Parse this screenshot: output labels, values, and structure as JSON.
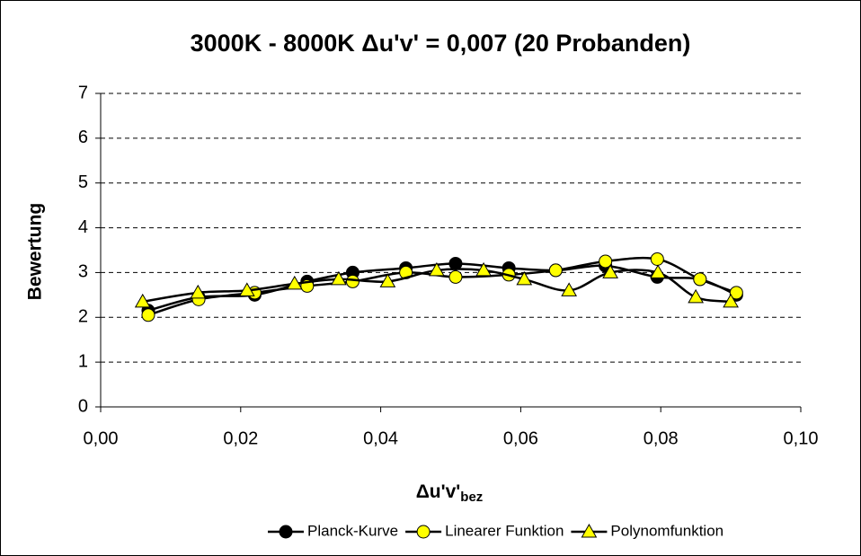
{
  "chart_data": {
    "type": "line",
    "smooth": true,
    "title": "3000K - 8000K Δu'v' = 0,007 (20 Probanden)",
    "xlabel": "Δu'v'",
    "xlabel_sub": "bez",
    "ylabel": "Bewertung",
    "xlim": [
      0,
      0.1
    ],
    "ylim": [
      0,
      7
    ],
    "xticks": [
      {
        "value": 0,
        "label": "0,00"
      },
      {
        "value": 0.02,
        "label": "0,02"
      },
      {
        "value": 0.04,
        "label": "0,04"
      },
      {
        "value": 0.06,
        "label": "0,06"
      },
      {
        "value": 0.08,
        "label": "0,08"
      },
      {
        "value": 0.1,
        "label": "0,10"
      }
    ],
    "yticks": [
      0,
      1,
      2,
      3,
      4,
      5,
      6,
      7
    ],
    "grid": true,
    "legend": "bottom",
    "series": [
      {
        "name": "Planck-Kurve",
        "color": "#000000",
        "marker": "circle",
        "x": [
          0.0068,
          0.014,
          0.022,
          0.0295,
          0.036,
          0.0436,
          0.0507,
          0.0583,
          0.065,
          0.0721,
          0.0795,
          0.0856,
          0.0908
        ],
        "values": [
          2.15,
          2.45,
          2.5,
          2.8,
          3.0,
          3.1,
          3.2,
          3.1,
          3.05,
          3.15,
          2.9,
          2.85,
          2.5
        ]
      },
      {
        "name": "Linearer Funktion",
        "color": "#ffff00",
        "marker": "circle",
        "x": [
          0.0068,
          0.014,
          0.022,
          0.0295,
          0.036,
          0.0436,
          0.0507,
          0.0583,
          0.065,
          0.0721,
          0.0795,
          0.0856,
          0.0908
        ],
        "values": [
          2.05,
          2.4,
          2.55,
          2.7,
          2.8,
          3.0,
          2.9,
          2.95,
          3.05,
          3.25,
          3.3,
          2.85,
          2.55
        ]
      },
      {
        "name": "Polynomfunktion",
        "color": "#ffff00",
        "marker": "triangle",
        "x": [
          0.006,
          0.0139,
          0.0209,
          0.0277,
          0.034,
          0.041,
          0.048,
          0.0547,
          0.0605,
          0.0669,
          0.0728,
          0.0796,
          0.085,
          0.09
        ],
        "values": [
          2.35,
          2.55,
          2.6,
          2.75,
          2.85,
          2.8,
          3.05,
          3.05,
          2.85,
          2.6,
          3.0,
          3.0,
          2.45,
          2.35
        ]
      }
    ]
  }
}
